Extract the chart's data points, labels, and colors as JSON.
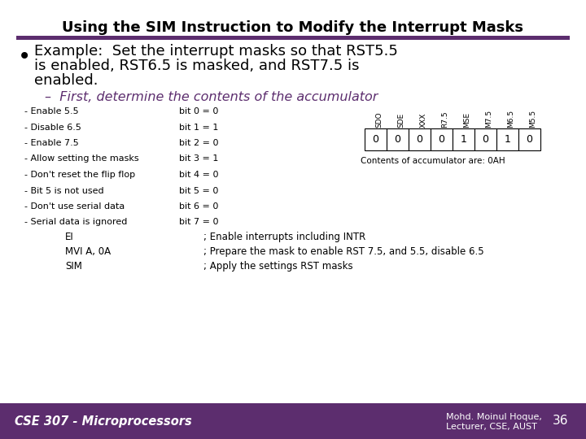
{
  "title": "Using the SIM Instruction to Modify the Interrupt Masks",
  "title_fontsize": 13,
  "title_color": "#000000",
  "bg_color": "#ffffff",
  "purple_bar_color": "#5c2d6e",
  "bullet_text_line1": "Example:  Set the interrupt masks so that RST5.5",
  "bullet_text_line2": "is enabled, RST6.5 is masked, and RST7.5 is",
  "bullet_text_line3": "enabled.",
  "bullet_color": "#000000",
  "sub_bullet_text": "–  First, determine the contents of the accumulator",
  "sub_bullet_color": "#5c2d6e",
  "left_labels": [
    "- Enable 5.5",
    "- Disable 6.5",
    "- Enable 7.5",
    "- Allow setting the masks",
    "- Don't reset the flip flop",
    "- Bit 5 is not used",
    "- Don't use serial data",
    "- Serial data is ignored"
  ],
  "bit_labels": [
    "bit 0 = 0",
    "bit 1 = 1",
    "bit 2 = 0",
    "bit 3 = 1",
    "bit 4 = 0",
    "bit 5 = 0",
    "bit 6 = 0",
    "bit 7 = 0"
  ],
  "table_headers": [
    "SDO",
    "SDE",
    "XXX",
    "R7.5",
    "MSE",
    "M7.5",
    "M6.5",
    "M5.5"
  ],
  "table_values": [
    "0",
    "0",
    "0",
    "0",
    "1",
    "0",
    "1",
    "0"
  ],
  "table_caption": "Contents of accumulator are: 0AH",
  "code_lines": [
    [
      "EI",
      "; Enable interrupts including INTR"
    ],
    [
      "MVI A, 0A",
      "; Prepare the mask to enable RST 7.5, and 5.5, disable 6.5"
    ],
    [
      "SIM",
      "; Apply the settings RST masks"
    ]
  ],
  "footer_left": "CSE 307 - Microprocessors",
  "footer_right1": "Mohd. Moinul Hoque,",
  "footer_right2": "Lecturer, CSE, AUST",
  "footer_page": "36",
  "footer_color": "#ffffff",
  "footer_bg": "#5c2d6e"
}
